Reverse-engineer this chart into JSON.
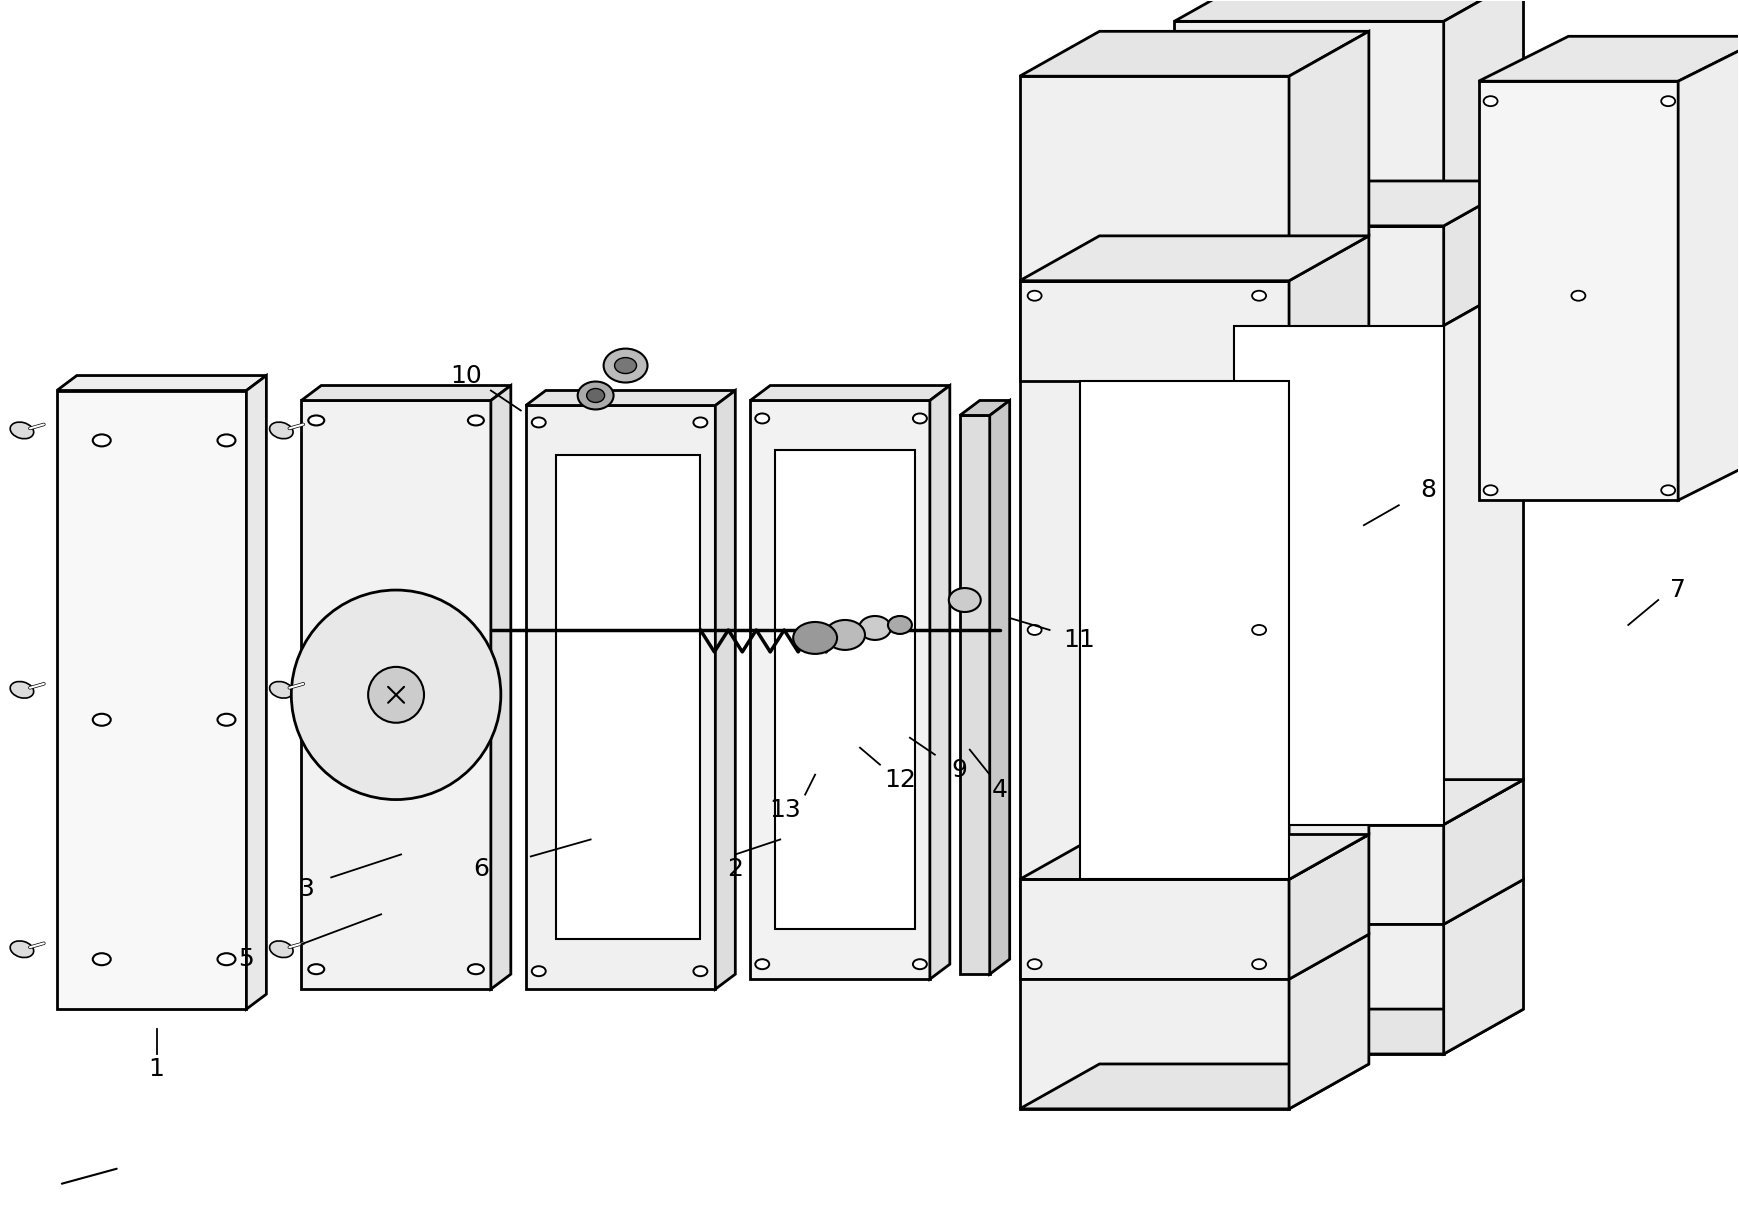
{
  "bg": "#ffffff",
  "lc": "#000000",
  "fw": 17.4,
  "fh": 12.24,
  "dpi": 100
}
